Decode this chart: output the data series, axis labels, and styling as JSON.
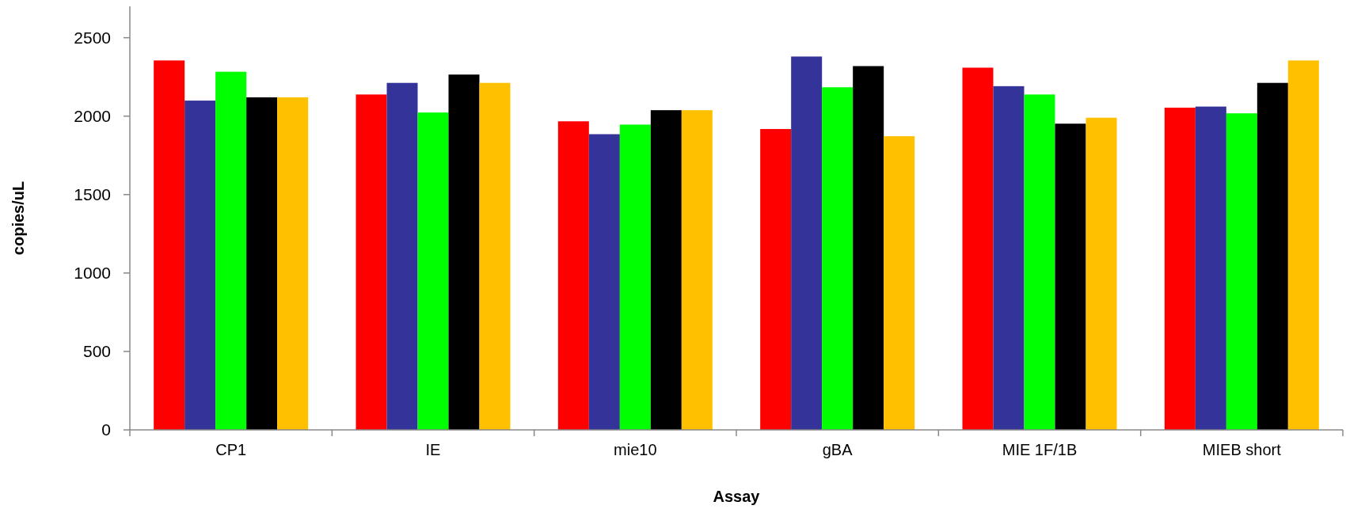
{
  "chart_data": {
    "type": "bar",
    "xlabel": "Assay",
    "ylabel": "copies/uL",
    "categories": [
      "CP1",
      "IE",
      "mie10",
      "gBA",
      "MIE 1F/1B",
      "MIEB short"
    ],
    "series": [
      {
        "color": "#ff0000",
        "values": [
          2355,
          2138,
          1967,
          1918,
          2309,
          2054
        ]
      },
      {
        "color": "#333399",
        "values": [
          2099,
          2212,
          1885,
          2380,
          2191,
          2061
        ]
      },
      {
        "color": "#00ff00",
        "values": [
          2283,
          2023,
          1946,
          2184,
          2138,
          2018
        ]
      },
      {
        "color": "#000000",
        "values": [
          2120,
          2265,
          2038,
          2319,
          1952,
          2212
        ]
      },
      {
        "color": "#ffc000",
        "values": [
          2120,
          2212,
          2038,
          1872,
          1990,
          2355
        ]
      }
    ],
    "ylim": [
      0,
      2700
    ],
    "yticks": [
      0,
      500,
      1000,
      1500,
      2000,
      2500
    ],
    "grid": false
  }
}
